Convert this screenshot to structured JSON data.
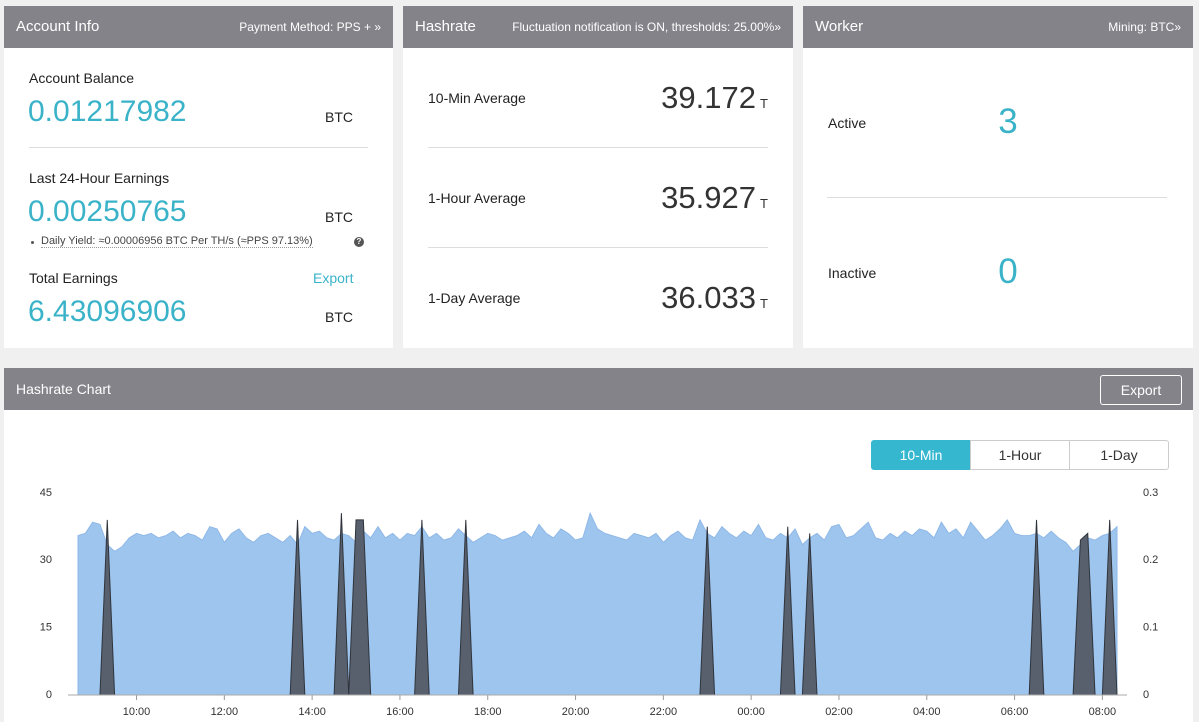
{
  "account_info": {
    "title": "Account Info",
    "payment": "Payment Method: PPS + »",
    "balance": {
      "label": "Account Balance",
      "value": "0.01217982",
      "unit": "BTC"
    },
    "last24": {
      "label": "Last 24-Hour Earnings",
      "value": "0.00250765",
      "unit": "BTC"
    },
    "daily_yield": "Daily Yield: ≈0.00006956 BTC Per TH/s (≈PPS 97.13%)",
    "total": {
      "label": "Total Earnings",
      "value": "6.43096906",
      "unit": "BTC",
      "export": "Export"
    }
  },
  "hashrate": {
    "title": "Hashrate",
    "note": "Fluctuation notification is ON, thresholds: 25.00%»",
    "rows": [
      {
        "label": "10-Min Average",
        "value": "39.172",
        "unit": "T"
      },
      {
        "label": "1-Hour Average",
        "value": "35.927",
        "unit": "T"
      },
      {
        "label": "1-Day Average",
        "value": "36.033",
        "unit": "T"
      }
    ]
  },
  "worker": {
    "title": "Worker",
    "mining": "Mining: BTC»",
    "rows": [
      {
        "label": "Active",
        "value": "3"
      },
      {
        "label": "Inactive",
        "value": "0"
      }
    ]
  },
  "chart_panel": {
    "title": "Hashrate Chart",
    "export": "Export",
    "buttons": [
      "10-Min",
      "1-Hour",
      "1-Day"
    ]
  },
  "chart_data": {
    "type": "area",
    "categories": [
      null,
      null,
      null,
      null,
      null,
      null,
      null,
      null,
      "10:00",
      null,
      null,
      null,
      null,
      null,
      null,
      null,
      null,
      null,
      null,
      null,
      "12:00",
      null,
      null,
      null,
      null,
      null,
      null,
      null,
      null,
      null,
      null,
      null,
      "14:00",
      null,
      null,
      null,
      null,
      null,
      null,
      null,
      null,
      null,
      null,
      null,
      "16:00",
      null,
      null,
      null,
      null,
      null,
      null,
      null,
      null,
      null,
      null,
      null,
      "18:00",
      null,
      null,
      null,
      null,
      null,
      null,
      null,
      null,
      null,
      null,
      null,
      "20:00",
      null,
      null,
      null,
      null,
      null,
      null,
      null,
      null,
      null,
      null,
      null,
      "22:00",
      null,
      null,
      null,
      null,
      null,
      null,
      null,
      null,
      null,
      null,
      null,
      "00:00",
      null,
      null,
      null,
      null,
      null,
      null,
      null,
      null,
      null,
      null,
      null,
      "02:00",
      null,
      null,
      null,
      null,
      null,
      null,
      null,
      null,
      null,
      null,
      null,
      "04:00",
      null,
      null,
      null,
      null,
      null,
      null,
      null,
      null,
      null,
      null,
      null,
      "06:00",
      null,
      null,
      null,
      null,
      null,
      null,
      null,
      null,
      null,
      null,
      null,
      "08:00",
      null,
      null
    ],
    "series": [
      {
        "color": "#9ec5ee",
        "values": [
          35.5,
          36,
          38.5,
          38,
          33.5,
          32,
          33,
          35,
          36,
          35.5,
          36,
          35,
          35.5,
          36.5,
          35,
          36,
          35.5,
          34.5,
          37.5,
          37,
          34,
          36,
          37,
          35,
          34,
          35.5,
          36,
          35,
          34,
          35.5,
          33.5,
          37.5,
          36,
          36.5,
          35,
          34.5,
          36,
          35.5,
          34,
          36.5,
          35,
          37.5,
          35,
          36,
          34.5,
          36,
          35.5,
          37.5,
          35,
          36,
          34.5,
          35,
          37,
          35.5,
          34,
          35,
          36,
          35.5,
          34.5,
          35,
          35.5,
          36.5,
          35,
          38,
          36,
          35,
          37,
          36,
          34.5,
          35,
          40.5,
          37,
          36,
          35.5,
          35,
          34.5,
          36,
          35.5,
          35,
          36,
          34,
          35.5,
          36.5,
          35,
          34.5,
          39,
          36,
          35,
          37.5,
          36,
          35,
          36.5,
          35.5,
          38,
          35,
          34.5,
          36,
          35,
          37,
          33.5,
          35,
          36,
          34.5,
          37.5,
          38,
          35,
          35.5,
          37,
          38.5,
          35,
          34.5,
          36,
          35,
          36.5,
          35.5,
          37,
          36.5,
          35,
          38.5,
          36,
          37,
          35,
          38.5,
          36.5,
          34.5,
          35.5,
          37,
          39,
          36,
          35.5,
          35.5,
          36,
          35,
          36.5,
          35,
          34,
          32,
          33.5,
          35,
          34.5,
          35.5,
          36,
          37.5
        ]
      },
      {
        "color": "#58606e",
        "axis": "y2",
        "values": [
          0,
          0,
          0,
          0,
          0.26,
          0,
          0,
          0,
          0,
          0,
          0,
          0,
          0,
          0,
          0,
          0,
          0,
          0,
          0,
          0,
          0,
          0,
          0,
          0,
          0,
          0,
          0,
          0,
          0,
          0,
          0.26,
          0,
          0,
          0,
          0,
          0,
          0.27,
          0,
          0.26,
          0.26,
          0,
          0,
          0,
          0,
          0,
          0,
          0,
          0.26,
          0,
          0,
          0,
          0,
          0,
          0.26,
          0,
          0,
          0,
          0,
          0,
          0,
          0,
          0,
          0,
          0,
          0,
          0,
          0,
          0,
          0,
          0,
          0,
          0,
          0,
          0,
          0,
          0,
          0,
          0,
          0,
          0,
          0,
          0,
          0,
          0,
          0,
          0,
          0.25,
          0,
          0,
          0,
          0,
          0,
          0,
          0,
          0,
          0,
          0,
          0.25,
          0,
          0,
          0.24,
          0,
          0,
          0,
          0,
          0,
          0,
          0,
          0,
          0,
          0,
          0,
          0,
          0,
          0,
          0,
          0,
          0,
          0,
          0,
          0,
          0,
          0,
          0,
          0,
          0,
          0,
          0,
          0,
          0,
          0,
          0.26,
          0,
          0,
          0,
          0,
          0,
          0.23,
          0.24,
          0,
          0,
          0.26,
          0
        ]
      }
    ],
    "ylim": [
      0,
      45
    ],
    "yticks": [
      0,
      15,
      30,
      45
    ],
    "y2lim": [
      0,
      0.3
    ],
    "y2ticks": [
      0,
      0.1,
      0.2,
      0.3
    ]
  }
}
